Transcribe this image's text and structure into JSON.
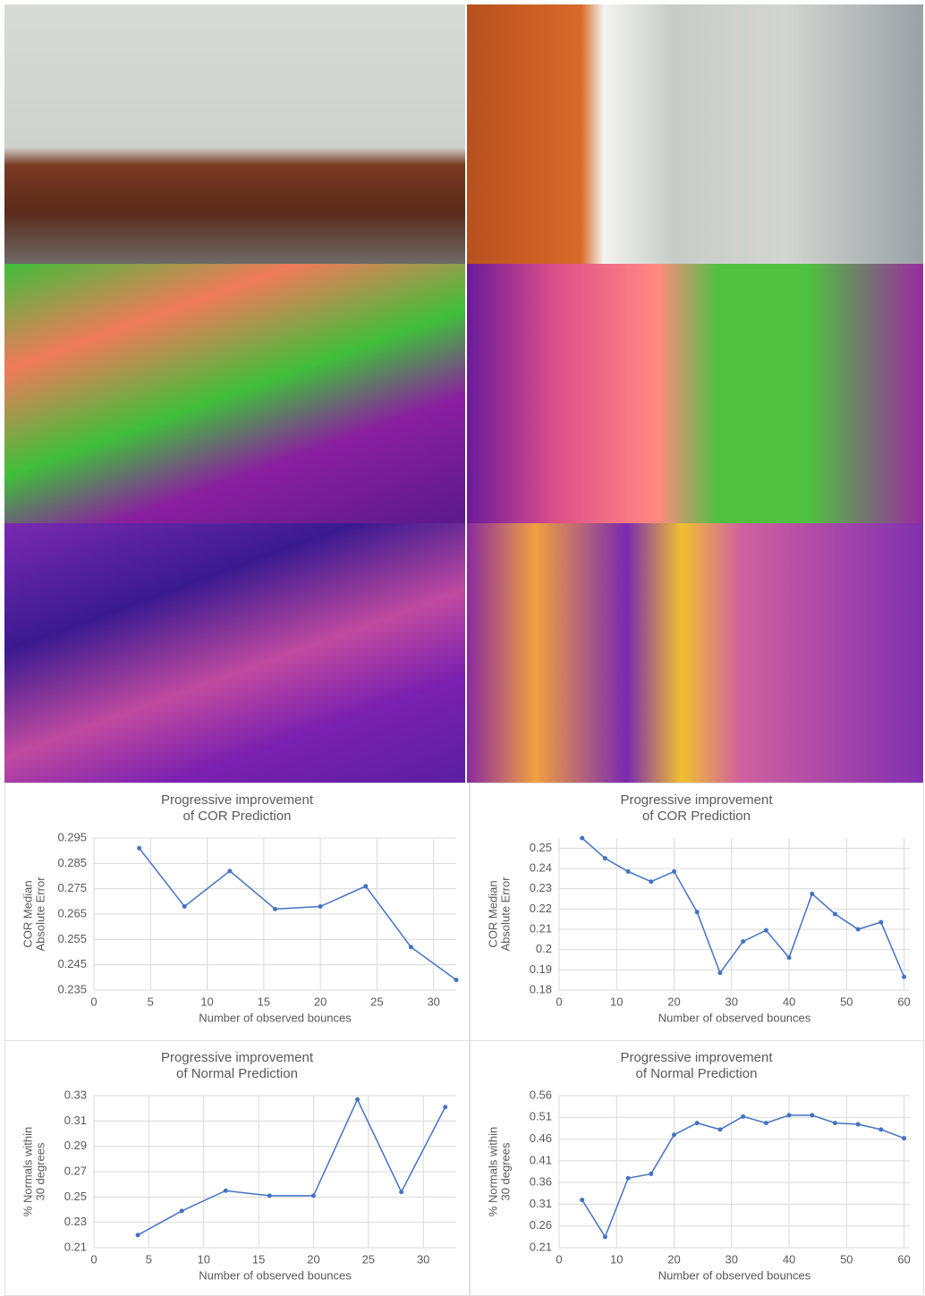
{
  "chart_data": [
    {
      "type": "line",
      "title": [
        "Progressive improvement",
        "of COR Prediction"
      ],
      "ylabel": [
        "COR Median",
        "Absolute Error"
      ],
      "xlabel": "Number of observed bounces",
      "x": [
        4,
        8,
        12,
        16,
        20,
        24,
        28,
        32
      ],
      "values": [
        0.291,
        0.268,
        0.282,
        0.267,
        0.268,
        0.276,
        0.252,
        0.239
      ],
      "color": "#4472c4",
      "xlim": [
        0,
        32
      ],
      "ylim": [
        0.235,
        0.295
      ],
      "xticks": [
        0,
        5,
        10,
        15,
        20,
        25,
        30
      ],
      "yticks": [
        0.235,
        0.245,
        0.255,
        0.265,
        0.275,
        0.285,
        0.295
      ],
      "grid": true
    },
    {
      "type": "line",
      "title": [
        "Progressive improvement",
        "of COR Prediction"
      ],
      "ylabel": [
        "COR Median",
        "Absolute Error"
      ],
      "xlabel": "Number of observed bounces",
      "x": [
        4,
        8,
        12,
        16,
        20,
        24,
        28,
        32,
        36,
        40,
        44,
        48,
        52,
        56,
        60
      ],
      "values": [
        0.255,
        0.245,
        0.2385,
        0.2335,
        0.2385,
        0.2185,
        0.1885,
        0.204,
        0.2095,
        0.196,
        0.2275,
        0.2175,
        0.21,
        0.2135,
        0.1865
      ],
      "color": "#4472c4",
      "xlim": [
        0,
        61
      ],
      "ylim": [
        0.18,
        0.255
      ],
      "xticks": [
        0,
        10,
        20,
        30,
        40,
        50,
        60
      ],
      "yticks": [
        0.18,
        0.19,
        0.2,
        0.21,
        0.22,
        0.23,
        0.24,
        0.25
      ],
      "grid": true
    },
    {
      "type": "line",
      "title": [
        "Progressive improvement",
        "of Normal Prediction"
      ],
      "ylabel": [
        "% Normals within",
        "30 degrees"
      ],
      "xlabel": "Number of observed bounces",
      "x": [
        4,
        8,
        12,
        16,
        20,
        24,
        28,
        32
      ],
      "values": [
        0.22,
        0.239,
        0.255,
        0.251,
        0.251,
        0.327,
        0.254,
        0.321
      ],
      "color": "#4472c4",
      "xlim": [
        0,
        33
      ],
      "ylim": [
        0.21,
        0.33
      ],
      "xticks": [
        0,
        5,
        10,
        15,
        20,
        25,
        30
      ],
      "yticks": [
        0.21,
        0.23,
        0.25,
        0.27,
        0.29,
        0.31,
        0.33
      ],
      "grid": true
    },
    {
      "type": "line",
      "title": [
        "Progressive improvement",
        "of Normal Prediction"
      ],
      "ylabel": [
        "% Normals within",
        "30 degrees"
      ],
      "xlabel": "Number of observed bounces",
      "x": [
        4,
        8,
        12,
        16,
        20,
        24,
        28,
        32,
        36,
        40,
        44,
        48,
        52,
        56,
        60
      ],
      "values": [
        0.32,
        0.235,
        0.37,
        0.38,
        0.47,
        0.497,
        0.482,
        0.512,
        0.497,
        0.515,
        0.515,
        0.497,
        0.494,
        0.482,
        0.462
      ],
      "color": "#4472c4",
      "xlim": [
        0,
        61
      ],
      "ylim": [
        0.21,
        0.56
      ],
      "xticks": [
        0,
        10,
        20,
        30,
        40,
        50,
        60
      ],
      "yticks": [
        0.21,
        0.26,
        0.31,
        0.36,
        0.41,
        0.46,
        0.51,
        0.56
      ],
      "grid": true
    }
  ]
}
